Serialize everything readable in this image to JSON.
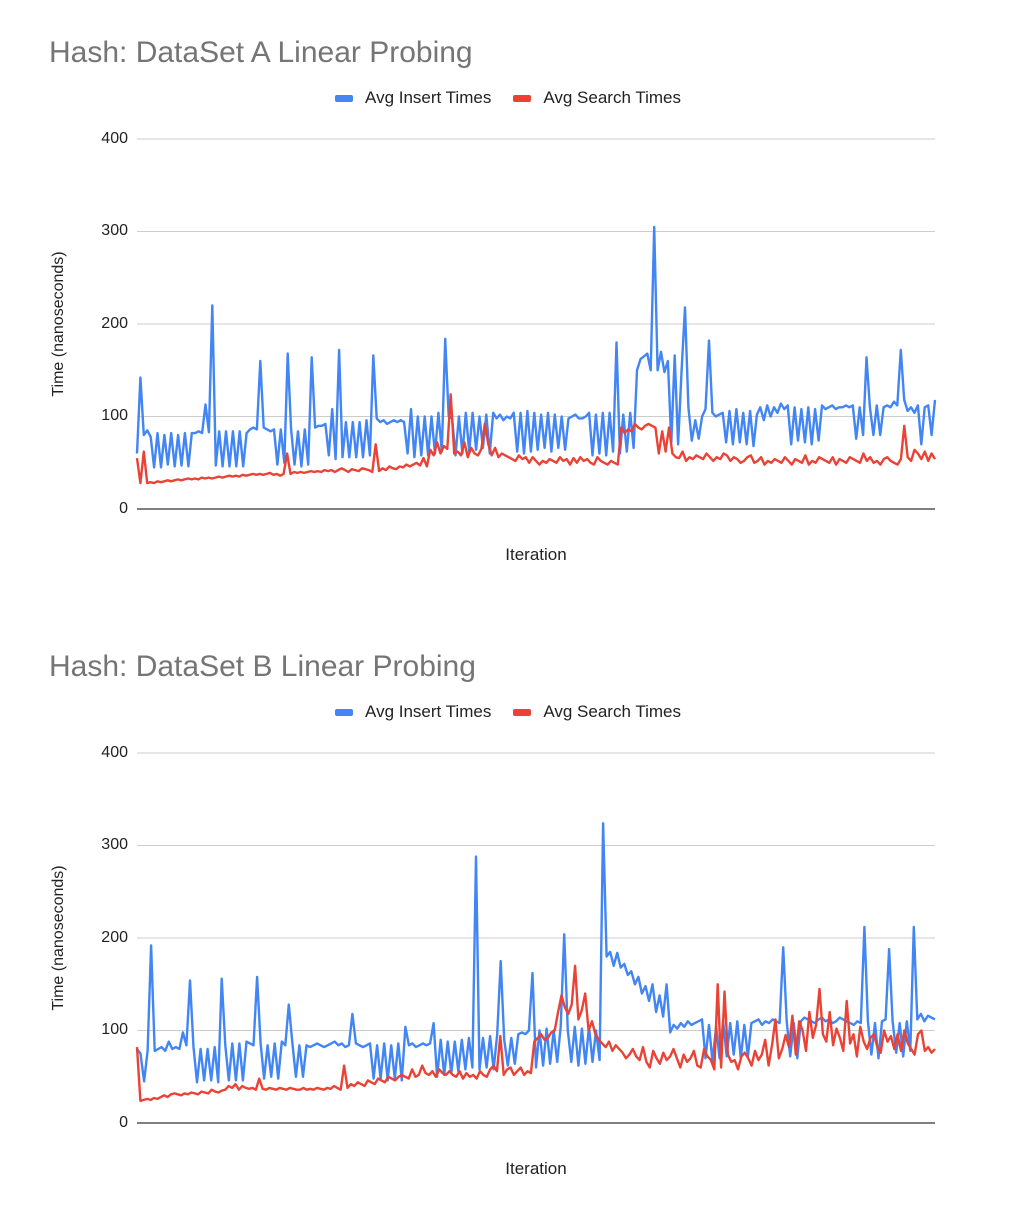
{
  "chart_data": [
    {
      "type": "line",
      "title": "Hash: DataSet A Linear Probing",
      "xlabel": "Iteration",
      "ylabel": "Time (nanoseconds)",
      "ylim": [
        0,
        400
      ],
      "yticks": [
        0,
        100,
        200,
        300,
        400
      ],
      "grid": true,
      "legend": "top-center",
      "series": [
        {
          "name": "Avg Insert Times",
          "color": "#4285f4",
          "values": [
            60,
            142,
            80,
            85,
            78,
            45,
            82,
            45,
            80,
            48,
            82,
            46,
            80,
            47,
            82,
            46,
            82,
            82,
            84,
            82,
            113,
            83,
            220,
            47,
            84,
            46,
            84,
            46,
            84,
            46,
            84,
            46,
            82,
            86,
            88,
            86,
            160,
            88,
            86,
            84,
            86,
            48,
            86,
            50,
            168,
            86,
            48,
            84,
            46,
            86,
            48,
            164,
            88,
            90,
            90,
            92,
            58,
            108,
            54,
            172,
            56,
            94,
            56,
            94,
            56,
            94,
            56,
            96,
            58,
            166,
            98,
            94,
            96,
            92,
            94,
            96,
            94,
            96,
            94,
            60,
            108,
            56,
            100,
            58,
            100,
            58,
            100,
            60,
            104,
            62,
            184,
            100,
            98,
            58,
            100,
            60,
            104,
            62,
            104,
            64,
            100,
            66,
            102,
            60,
            104,
            98,
            102,
            96,
            100,
            98,
            104,
            62,
            104,
            60,
            106,
            62,
            104,
            64,
            102,
            66,
            104,
            62,
            102,
            66,
            100,
            64,
            98,
            100,
            102,
            98,
            98,
            100,
            104,
            58,
            102,
            60,
            104,
            58,
            104,
            62,
            180,
            60,
            102,
            62,
            104,
            66,
            150,
            162,
            165,
            168,
            150,
            305,
            150,
            170,
            148,
            160,
            72,
            166,
            70,
            150,
            218,
            110,
            74,
            96,
            76,
            100,
            108,
            182,
            104,
            100,
            102,
            104,
            72,
            106,
            70,
            108,
            72,
            104,
            70,
            106,
            68,
            102,
            110,
            96,
            112,
            100,
            110,
            104,
            114,
            108,
            112,
            70,
            110,
            74,
            108,
            72,
            110,
            70,
            108,
            74,
            112,
            108,
            110,
            112,
            108,
            110,
            110,
            112,
            110,
            112,
            76,
            110,
            80,
            164,
            110,
            80,
            112,
            80,
            110,
            112,
            110,
            116,
            112,
            172,
            118,
            106,
            110,
            104,
            112,
            70,
            110,
            112,
            80,
            118
          ]
        },
        {
          "name": "Avg Search Times",
          "color": "#ea4335",
          "values": [
            55,
            28,
            62,
            28,
            29,
            28,
            30,
            29,
            30,
            31,
            30,
            31,
            32,
            31,
            32,
            33,
            32,
            33,
            32,
            34,
            33,
            34,
            33,
            34,
            35,
            34,
            35,
            36,
            35,
            36,
            35,
            37,
            36,
            37,
            38,
            37,
            38,
            37,
            38,
            39,
            37,
            38,
            36,
            38,
            60,
            38,
            40,
            39,
            40,
            39,
            40,
            41,
            40,
            41,
            40,
            42,
            41,
            42,
            40,
            42,
            44,
            42,
            40,
            43,
            42,
            41,
            44,
            43,
            42,
            40,
            70,
            41,
            44,
            42,
            46,
            44,
            43,
            46,
            45,
            48,
            46,
            48,
            50,
            47,
            55,
            46,
            64,
            58,
            72,
            60,
            68,
            65,
            124,
            60,
            62,
            58,
            72,
            56,
            66,
            60,
            58,
            65,
            92,
            70,
            58,
            66,
            56,
            60,
            58,
            56,
            54,
            52,
            58,
            54,
            56,
            50,
            56,
            52,
            48,
            52,
            50,
            54,
            52,
            50,
            56,
            52,
            54,
            48,
            55,
            50,
            56,
            52,
            54,
            50,
            48,
            56,
            52,
            50,
            48,
            52,
            50,
            48,
            88,
            82,
            86,
            84,
            92,
            88,
            86,
            90,
            92,
            90,
            88,
            60,
            84,
            62,
            88,
            60,
            56,
            55,
            62,
            52,
            56,
            54,
            58,
            56,
            54,
            60,
            56,
            52,
            56,
            54,
            60,
            58,
            52,
            56,
            54,
            50,
            52,
            56,
            58,
            50,
            52,
            56,
            48,
            52,
            50,
            54,
            52,
            50,
            56,
            52,
            48,
            54,
            52,
            50,
            58,
            48,
            52,
            50,
            56,
            54,
            52,
            50,
            56,
            48,
            54,
            52,
            50,
            56,
            54,
            52,
            50,
            60,
            52,
            56,
            50,
            52,
            48,
            54,
            56,
            52,
            50,
            48,
            54,
            90,
            56,
            52,
            64,
            60,
            54,
            62,
            52,
            60,
            54
          ]
        }
      ]
    },
    {
      "type": "line",
      "title": "Hash: DataSet B Linear Probing",
      "xlabel": "Iteration",
      "ylabel": "Time (nanoseconds)",
      "ylim": [
        0,
        400
      ],
      "yticks": [
        0,
        100,
        200,
        300,
        400
      ],
      "grid": true,
      "legend": "top-center",
      "series": [
        {
          "name": "Avg Insert Times",
          "color": "#4285f4",
          "values": [
            80,
            75,
            45,
            78,
            192,
            78,
            80,
            82,
            78,
            88,
            80,
            82,
            80,
            98,
            84,
            154,
            82,
            44,
            80,
            46,
            80,
            46,
            82,
            44,
            156,
            84,
            46,
            86,
            46,
            86,
            46,
            88,
            86,
            84,
            158,
            86,
            48,
            84,
            50,
            86,
            48,
            88,
            84,
            128,
            86,
            50,
            84,
            50,
            84,
            82,
            84,
            86,
            84,
            82,
            84,
            86,
            88,
            84,
            86,
            82,
            84,
            118,
            86,
            84,
            82,
            84,
            86,
            48,
            84,
            48,
            86,
            46,
            84,
            48,
            86,
            46,
            104,
            84,
            86,
            82,
            84,
            86,
            84,
            86,
            108,
            50,
            90,
            52,
            88,
            54,
            88,
            56,
            90,
            58,
            92,
            60,
            288,
            58,
            92,
            60,
            94,
            58,
            96,
            175,
            90,
            62,
            92,
            64,
            96,
            98,
            96,
            100,
            162,
            60,
            100,
            62,
            102,
            64,
            100,
            66,
            104,
            204,
            100,
            66,
            104,
            62,
            102,
            64,
            104,
            66,
            100,
            68,
            324,
            180,
            185,
            170,
            184,
            168,
            172,
            160,
            164,
            150,
            158,
            140,
            148,
            132,
            150,
            120,
            138,
            115,
            150,
            98,
            106,
            102,
            108,
            104,
            110,
            106,
            108,
            110,
            112,
            70,
            106,
            66,
            104,
            70,
            110,
            72,
            108,
            74,
            110,
            70,
            106,
            72,
            108,
            110,
            112,
            106,
            110,
            108,
            112,
            110,
            108,
            190,
            110,
            72,
            108,
            70,
            110,
            114,
            112,
            110,
            108,
            112,
            114,
            110,
            112,
            108,
            110,
            114,
            112,
            110,
            108,
            106,
            110,
            108,
            212,
            110,
            74,
            108,
            70,
            110,
            112,
            188,
            110,
            76,
            108,
            72,
            110,
            78,
            212,
            112,
            118,
            110,
            116,
            114,
            112
          ]
        },
        {
          "name": "Avg Search Times",
          "color": "#ea4335",
          "values": [
            82,
            24,
            25,
            26,
            25,
            27,
            26,
            28,
            30,
            28,
            31,
            32,
            31,
            30,
            32,
            31,
            33,
            32,
            31,
            34,
            33,
            32,
            36,
            34,
            33,
            35,
            36,
            40,
            38,
            42,
            36,
            40,
            38,
            37,
            38,
            36,
            48,
            37,
            36,
            38,
            37,
            36,
            38,
            37,
            36,
            38,
            37,
            36,
            36,
            38,
            36,
            37,
            36,
            38,
            37,
            36,
            38,
            37,
            40,
            38,
            36,
            62,
            38,
            42,
            40,
            44,
            42,
            40,
            46,
            44,
            42,
            48,
            46,
            44,
            50,
            48,
            46,
            50,
            52,
            50,
            48,
            58,
            50,
            52,
            62,
            54,
            52,
            56,
            50,
            58,
            54,
            52,
            56,
            52,
            50,
            56,
            48,
            54,
            50,
            52,
            48,
            56,
            52,
            50,
            58,
            62,
            56,
            94,
            52,
            58,
            60,
            52,
            56,
            60,
            52,
            56,
            54,
            88,
            92,
            96,
            90,
            92,
            98,
            100,
            120,
            138,
            125,
            118,
            128,
            170,
            112,
            122,
            140,
            100,
            110,
            96,
            90,
            86,
            82,
            88,
            78,
            84,
            80,
            76,
            70,
            74,
            80,
            72,
            68,
            82,
            66,
            60,
            78,
            70,
            64,
            76,
            68,
            72,
            80,
            70,
            60,
            74,
            66,
            70,
            78,
            62,
            60,
            80,
            72,
            68,
            58,
            150,
            60,
            142,
            74,
            66,
            68,
            58,
            72,
            76,
            70,
            62,
            78,
            68,
            74,
            90,
            62,
            84,
            112,
            70,
            80,
            95,
            82,
            116,
            74,
            110,
            100,
            78,
            120,
            92,
            106,
            145,
            96,
            88,
            120,
            84,
            102,
            92,
            78,
            132,
            86,
            96,
            72,
            104,
            88,
            80,
            92,
            96,
            82,
            76,
            100,
            88,
            94,
            80,
            96,
            78,
            100,
            86,
            80,
            74,
            96,
            100,
            78,
            82,
            76,
            80
          ]
        }
      ]
    }
  ]
}
